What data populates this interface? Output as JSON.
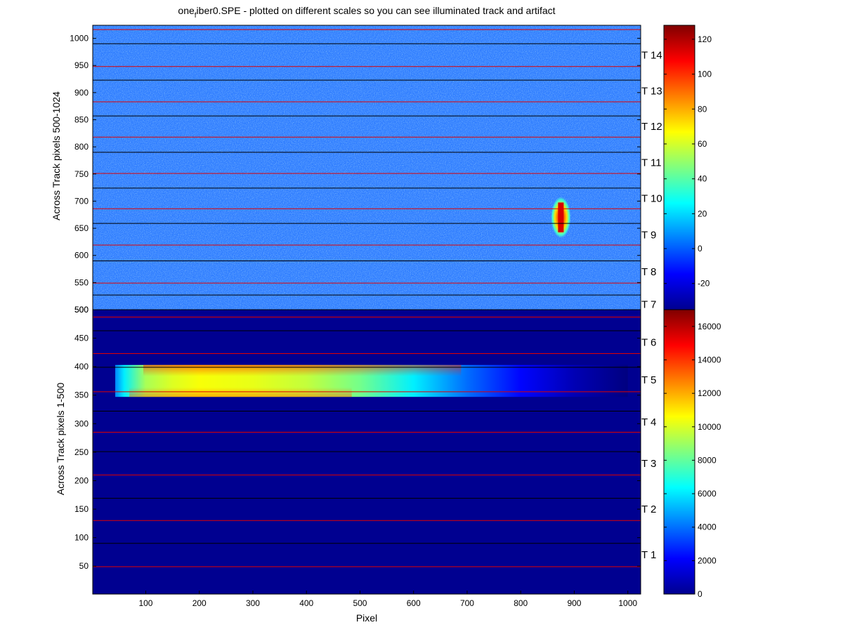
{
  "chart_data": [
    {
      "type": "heatmap",
      "title_main": "one",
      "title_sub": "f",
      "title_rest": "iber0.SPE - plotted on different scales so you can see illuminated track and artifact",
      "xlabel": "",
      "ylabel": "Across Track pixels 500-1024",
      "xlim": [
        1,
        1024
      ],
      "ylim": [
        500,
        1024
      ],
      "yticks": [
        "500",
        "550",
        "600",
        "650",
        "700",
        "750",
        "800",
        "850",
        "900",
        "950",
        "1000"
      ],
      "colormap": "jet",
      "colorbar": {
        "clim": [
          -35,
          128
        ],
        "ticks": [
          "-20",
          "0",
          "20",
          "40",
          "60",
          "80",
          "100",
          "120"
        ]
      },
      "background_level": 0,
      "features": [
        {
          "name": "artifact",
          "x_center": 875,
          "y_range": [
            640,
            700
          ],
          "peak": 120
        }
      ],
      "track_boundaries": {
        "black": [
          527,
          590,
          659,
          724,
          790,
          857,
          923,
          990
        ],
        "red": [
          549,
          619,
          686,
          751,
          818,
          883,
          948,
          1016
        ]
      },
      "track_labels": [
        {
          "label": "T 7",
          "y": 510
        },
        {
          "label": "T 8",
          "y": 570
        },
        {
          "label": "T 9",
          "y": 638
        },
        {
          "label": "T 10",
          "y": 705
        },
        {
          "label": "T 11",
          "y": 771
        },
        {
          "label": "T 12",
          "y": 838
        },
        {
          "label": "T 13",
          "y": 903
        },
        {
          "label": "T 14",
          "y": 969
        }
      ]
    },
    {
      "type": "heatmap",
      "xlabel": "Pixel",
      "ylabel": "Across Track pixels 1-500",
      "xlim": [
        1,
        1024
      ],
      "ylim": [
        1,
        500
      ],
      "xticks": [
        "100",
        "200",
        "300",
        "400",
        "500",
        "600",
        "700",
        "800",
        "900",
        "1000"
      ],
      "yticks": [
        "50",
        "100",
        "150",
        "200",
        "250",
        "300",
        "350",
        "400",
        "450",
        "500"
      ],
      "colormap": "jet",
      "colorbar": {
        "clim": [
          0,
          17000
        ],
        "ticks": [
          "0",
          "2000",
          "4000",
          "6000",
          "8000",
          "10000",
          "12000",
          "14000",
          "16000"
        ]
      },
      "illuminated_track": {
        "x_start": 43,
        "x_end": 1000,
        "y_range": [
          347,
          403
        ],
        "intensity_profile": [
          {
            "x": 43,
            "value": 5000
          },
          {
            "x": 60,
            "value": 7000
          },
          {
            "x": 100,
            "value": 10500
          },
          {
            "x": 150,
            "value": 11500
          },
          {
            "x": 200,
            "value": 12000
          },
          {
            "x": 300,
            "value": 11700
          },
          {
            "x": 400,
            "value": 11000
          },
          {
            "x": 500,
            "value": 9500
          },
          {
            "x": 600,
            "value": 7000
          },
          {
            "x": 700,
            "value": 4500
          },
          {
            "x": 800,
            "value": 2500
          },
          {
            "x": 900,
            "value": 1000
          },
          {
            "x": 1000,
            "value": 0
          }
        ]
      },
      "track_boundaries": {
        "black": [
          90,
          169,
          251,
          322,
          399,
          463
        ],
        "red": [
          49,
          130,
          210,
          285,
          356,
          423,
          487
        ]
      },
      "track_labels": [
        {
          "label": "T 1",
          "y": 70
        },
        {
          "label": "T 2",
          "y": 150
        },
        {
          "label": "T 3",
          "y": 230
        },
        {
          "label": "T 4",
          "y": 303
        },
        {
          "label": "T 5",
          "y": 377
        },
        {
          "label": "T 6",
          "y": 443
        }
      ]
    }
  ]
}
